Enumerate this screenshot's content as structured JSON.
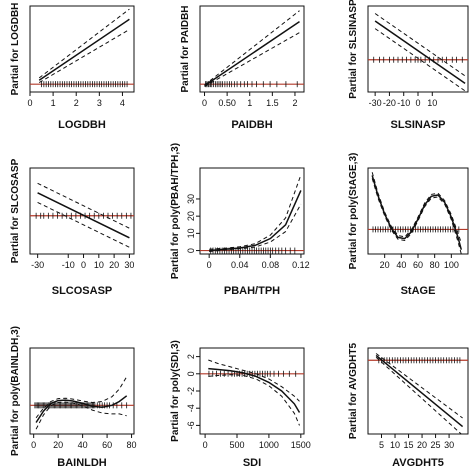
{
  "colors": {
    "fit_line": "#111111",
    "ci_line": "#111111",
    "reference_line": "#b23a2a",
    "rug": "#111111",
    "axis": "#111111"
  },
  "chart_data": [
    {
      "type": "line",
      "xlabel": "LOGDBH",
      "ylabel": "Partial for LOGDBH",
      "xlim": [
        0,
        4.5
      ],
      "ylim": [
        -1,
        10
      ],
      "xticks": [
        0,
        1,
        2,
        3,
        4
      ],
      "yticks": [],
      "ref_y": 0,
      "series": [
        {
          "role": "fit",
          "x": [
            0.4,
            4.3
          ],
          "y": [
            0.5,
            8.3
          ]
        },
        {
          "role": "upper",
          "x": [
            0.4,
            4.3
          ],
          "y": [
            0.8,
            9.6
          ]
        },
        {
          "role": "lower",
          "x": [
            0.4,
            4.3
          ],
          "y": [
            0.2,
            7.0
          ]
        }
      ],
      "rug": [
        0.5,
        0.6,
        0.7,
        0.8,
        0.9,
        1.0,
        1.1,
        1.2,
        1.3,
        1.4,
        1.5,
        1.6,
        1.7,
        1.8,
        1.9,
        2.0,
        2.1,
        2.2,
        2.3,
        2.4,
        2.5,
        2.6,
        2.7,
        2.8,
        2.9,
        3.0,
        3.1,
        3.2,
        3.3,
        3.4,
        3.5,
        3.6,
        3.7,
        3.8,
        3.9,
        4.0,
        4.1,
        4.2
      ]
    },
    {
      "type": "line",
      "xlabel": "PAIDBH",
      "ylabel": "Partial for PAIDBH",
      "xlim": [
        -0.1,
        2.2
      ],
      "ylim": [
        -1,
        10
      ],
      "xticks": [
        0.0,
        0.5,
        1.0,
        1.5,
        2.0
      ],
      "yticks": [],
      "ref_y": 0,
      "series": [
        {
          "role": "fit",
          "x": [
            0.0,
            2.1
          ],
          "y": [
            -0.2,
            8.0
          ]
        },
        {
          "role": "upper",
          "x": [
            0.0,
            2.1
          ],
          "y": [
            -0.1,
            9.4
          ]
        },
        {
          "role": "lower",
          "x": [
            0.0,
            2.1
          ],
          "y": [
            -0.3,
            6.6
          ]
        }
      ],
      "rug": [
        0.02,
        0.05,
        0.08,
        0.1,
        0.13,
        0.16,
        0.2,
        0.24,
        0.28,
        0.32,
        0.36,
        0.4,
        0.45,
        0.5,
        0.55,
        0.6,
        0.66,
        0.72,
        0.8,
        0.88,
        0.95,
        1.05,
        1.15,
        1.3,
        1.45,
        1.6,
        1.8,
        2.05
      ]
    },
    {
      "type": "line",
      "xlabel": "SLSINASP",
      "ylabel": "Partial for SLSINASP",
      "xlim": [
        -35,
        35
      ],
      "ylim": [
        -3,
        5
      ],
      "xticks": [
        -30,
        -20,
        -10,
        0,
        10
      ],
      "yticks": [],
      "ref_y": 0,
      "series": [
        {
          "role": "fit",
          "x": [
            -30,
            33
          ],
          "y": [
            3.6,
            -2.2
          ]
        },
        {
          "role": "upper",
          "x": [
            -30,
            33
          ],
          "y": [
            4.3,
            -1.5
          ]
        },
        {
          "role": "lower",
          "x": [
            -30,
            33
          ],
          "y": [
            2.9,
            -2.9
          ]
        }
      ],
      "rug": [
        -31,
        -27,
        -24,
        -20,
        -17,
        -14,
        -11,
        -8,
        -5,
        -2,
        0,
        2,
        5,
        8,
        11,
        14,
        17,
        20,
        24,
        27,
        31
      ]
    },
    {
      "type": "line",
      "xlabel": "SLCOSASP",
      "ylabel": "Partial for SLCOSASP",
      "xlim": [
        -35,
        33
      ],
      "ylim": [
        -4,
        5
      ],
      "xticks": [
        -30,
        -10,
        0,
        10,
        20,
        30
      ],
      "yticks": [],
      "ref_y": 0,
      "series": [
        {
          "role": "fit",
          "x": [
            -30,
            30
          ],
          "y": [
            2.4,
            -2.3
          ]
        },
        {
          "role": "upper",
          "x": [
            -30,
            30
          ],
          "y": [
            3.4,
            -1.3
          ]
        },
        {
          "role": "lower",
          "x": [
            -30,
            30
          ],
          "y": [
            1.4,
            -3.3
          ]
        }
      ],
      "rug": [
        -31,
        -28,
        -26,
        -23,
        -20,
        -17,
        -14,
        -11,
        -8,
        -5,
        -2,
        1,
        4,
        7,
        10,
        13,
        16,
        19,
        22,
        25,
        28,
        31
      ]
    },
    {
      "type": "line",
      "xlabel": "PBAH/TPH",
      "ylabel": "Partial for poly(PBAH/TPH,3)",
      "xlim": [
        -0.012,
        0.124
      ],
      "ylim": [
        -2,
        48
      ],
      "xticks": [
        0.0,
        0.04,
        0.08,
        0.12
      ],
      "yticks": [
        0,
        10,
        20,
        30
      ],
      "ref_y": 0,
      "series": [
        {
          "role": "fit",
          "x": [
            0,
            0.02,
            0.04,
            0.06,
            0.08,
            0.1,
            0.12
          ],
          "y": [
            0,
            0.8,
            1.5,
            3,
            7,
            15,
            35
          ]
        },
        {
          "role": "upper",
          "x": [
            0,
            0.02,
            0.04,
            0.06,
            0.08,
            0.1,
            0.12
          ],
          "y": [
            0.8,
            1.4,
            2.2,
            4,
            9,
            19,
            44
          ]
        },
        {
          "role": "lower",
          "x": [
            0,
            0.02,
            0.04,
            0.06,
            0.08,
            0.1,
            0.12
          ],
          "y": [
            -0.6,
            0.3,
            1.0,
            2,
            5,
            11,
            27
          ]
        }
      ],
      "rug": [
        0.002,
        0.005,
        0.008,
        0.011,
        0.014,
        0.017,
        0.02,
        0.023,
        0.026,
        0.029,
        0.032,
        0.035,
        0.038,
        0.041,
        0.044,
        0.047,
        0.05,
        0.053,
        0.056,
        0.059,
        0.062,
        0.065,
        0.068,
        0.071,
        0.074,
        0.077,
        0.08,
        0.083,
        0.087,
        0.091,
        0.095,
        0.1,
        0.106,
        0.112
      ]
    },
    {
      "type": "line",
      "xlabel": "StAGE",
      "ylabel": "Partial for poly(StAGE,3)",
      "xlim": [
        0,
        120
      ],
      "ylim": [
        -4,
        10
      ],
      "xticks": [
        20,
        40,
        60,
        80,
        100
      ],
      "yticks": [],
      "ref_y": 0,
      "series": [
        {
          "role": "fit",
          "x": [
            5,
            12,
            20,
            28,
            36,
            44,
            52,
            60,
            68,
            76,
            84,
            92,
            100,
            108,
            112
          ],
          "y": [
            8.8,
            5.5,
            2.5,
            0.2,
            -1.3,
            -1.5,
            -0.4,
            1.7,
            4.0,
            5.4,
            5.6,
            4.4,
            2.0,
            -1.3,
            -3.3
          ]
        },
        {
          "role": "upper",
          "x": [
            5,
            12,
            20,
            28,
            36,
            44,
            52,
            60,
            68,
            76,
            84,
            92,
            100,
            108,
            112
          ],
          "y": [
            9.3,
            5.9,
            2.8,
            0.5,
            -1.0,
            -1.2,
            -0.1,
            2.0,
            4.3,
            5.7,
            5.9,
            4.7,
            2.4,
            -0.6,
            -2.2
          ]
        },
        {
          "role": "lower",
          "x": [
            5,
            12,
            20,
            28,
            36,
            44,
            52,
            60,
            68,
            76,
            84,
            92,
            100,
            108,
            112
          ],
          "y": [
            8.3,
            5.1,
            2.2,
            -0.1,
            -1.6,
            -1.8,
            -0.7,
            1.4,
            3.7,
            5.1,
            5.3,
            4.1,
            1.6,
            -2.0,
            -4.0
          ]
        }
      ],
      "rug": [
        6,
        9,
        12,
        15,
        18,
        21,
        24,
        27,
        30,
        33,
        36,
        39,
        42,
        45,
        48,
        51,
        54,
        57,
        60,
        63,
        66,
        69,
        72,
        75,
        78,
        81,
        84,
        87,
        90,
        93,
        96,
        99,
        102,
        105,
        109
      ]
    },
    {
      "type": "line",
      "xlabel": "BAINLDH",
      "ylabel": "Partial for poly(BAINLDH,3)",
      "xlim": [
        -3,
        82
      ],
      "ylim": [
        -3,
        6
      ],
      "xticks": [
        0,
        20,
        40,
        60,
        80
      ],
      "yticks": [],
      "ref_y": 0,
      "series": [
        {
          "role": "fit",
          "x": [
            2,
            8,
            14,
            20,
            26,
            32,
            40,
            48,
            56,
            64,
            70,
            76
          ],
          "y": [
            -1.8,
            -0.6,
            0.2,
            0.5,
            0.55,
            0.45,
            0.2,
            -0.1,
            -0.2,
            0.0,
            0.4,
            1.0
          ]
        },
        {
          "role": "upper",
          "x": [
            2,
            8,
            14,
            20,
            26,
            32,
            40,
            48,
            56,
            64,
            70,
            76
          ],
          "y": [
            -1.3,
            -0.3,
            0.4,
            0.7,
            0.75,
            0.65,
            0.45,
            0.3,
            0.4,
            0.9,
            1.7,
            3.0
          ]
        },
        {
          "role": "lower",
          "x": [
            2,
            8,
            14,
            20,
            26,
            32,
            40,
            48,
            56,
            64,
            70,
            76
          ],
          "y": [
            -2.5,
            -1.0,
            -0.05,
            0.3,
            0.35,
            0.25,
            -0.05,
            -0.5,
            -0.8,
            -0.9,
            -0.9,
            -1.1
          ]
        }
      ],
      "rug": [
        1,
        2,
        3,
        4,
        5,
        6,
        7,
        8,
        9,
        10,
        11,
        12,
        13,
        14,
        15,
        16,
        17,
        18,
        19,
        20,
        21,
        22,
        23,
        24,
        25,
        26,
        27,
        28,
        29,
        30,
        31,
        32,
        33,
        34,
        35,
        36,
        37,
        38,
        39,
        40,
        41,
        42,
        43,
        44,
        45,
        46,
        47,
        48,
        49,
        50,
        52,
        54,
        56,
        58,
        60,
        62,
        65,
        68,
        72,
        76
      ]
    },
    {
      "type": "line",
      "xlabel": "SDI",
      "ylabel": "Partial for poly(SDI,3)",
      "xlim": [
        -80,
        1550
      ],
      "ylim": [
        -7,
        3
      ],
      "xticks": [
        0,
        500,
        1000,
        1500
      ],
      "yticks": [
        2,
        0,
        -2,
        -4,
        -6
      ],
      "ref_y": 0,
      "series": [
        {
          "role": "fit",
          "x": [
            50,
            200,
            400,
            600,
            800,
            1000,
            1200,
            1400,
            1480
          ],
          "y": [
            0.6,
            0.5,
            0.35,
            0.1,
            -0.3,
            -1.0,
            -2.0,
            -3.5,
            -4.5
          ]
        },
        {
          "role": "upper",
          "x": [
            50,
            200,
            400,
            600,
            800,
            1000,
            1200,
            1400,
            1480
          ],
          "y": [
            1.6,
            1.2,
            0.8,
            0.4,
            0.0,
            -0.6,
            -1.5,
            -2.6,
            -3.2
          ]
        },
        {
          "role": "lower",
          "x": [
            50,
            200,
            400,
            600,
            800,
            1000,
            1200,
            1400,
            1480
          ],
          "y": [
            -0.3,
            -0.2,
            -0.1,
            -0.2,
            -0.6,
            -1.4,
            -2.6,
            -4.6,
            -6.0
          ]
        }
      ],
      "rug": [
        60,
        120,
        180,
        240,
        300,
        360,
        420,
        460,
        500,
        540,
        580,
        620,
        660,
        700,
        740,
        780,
        820,
        860,
        900,
        940,
        980,
        1020,
        1080,
        1150,
        1230,
        1320,
        1420
      ]
    },
    {
      "type": "line",
      "xlabel": "AVGDHT5",
      "ylabel": "Partial for AVGDHT5",
      "xlim": [
        0,
        37
      ],
      "ylim": [
        -6,
        1
      ],
      "xticks": [
        5,
        10,
        15,
        20,
        25,
        30
      ],
      "yticks": [],
      "ref_y": 0,
      "series": [
        {
          "role": "fit",
          "x": [
            3,
            35
          ],
          "y": [
            0.4,
            -5.4
          ]
        },
        {
          "role": "upper",
          "x": [
            3,
            35
          ],
          "y": [
            0.55,
            -4.7
          ]
        },
        {
          "role": "lower",
          "x": [
            3,
            35
          ],
          "y": [
            0.25,
            -6.1
          ]
        }
      ],
      "rug": [
        4,
        5,
        6,
        7,
        8,
        9,
        10,
        11,
        12,
        13,
        14,
        15,
        16,
        17,
        18,
        19,
        20,
        21,
        22,
        23,
        24,
        25,
        26,
        27,
        28,
        29,
        30,
        31,
        32,
        33,
        34
      ]
    }
  ]
}
